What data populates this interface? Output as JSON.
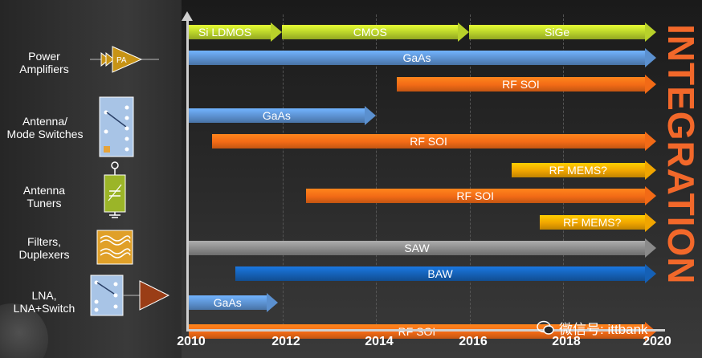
{
  "categories": [
    {
      "id": "pa",
      "label_lines": [
        "Power",
        "Amplifiers"
      ]
    },
    {
      "id": "switch",
      "label_lines": [
        "Antenna/",
        "Mode Switches"
      ]
    },
    {
      "id": "tuner",
      "label_lines": [
        "Antenna",
        "Tuners"
      ]
    },
    {
      "id": "filter",
      "label_lines": [
        "Filters,",
        "Duplexers"
      ]
    },
    {
      "id": "lna",
      "label_lines": [
        "LNA,",
        "LNA+Switch"
      ]
    }
  ],
  "pa_icon_text": "PA",
  "axis": {
    "ticks": [
      "2010",
      "2012",
      "2014",
      "2016",
      "2018",
      "2020"
    ]
  },
  "timeline": [
    {
      "name": "bar-si-ldmos",
      "label": "Si LDMOS",
      "start": 2010,
      "end": 2012,
      "row": 0,
      "color": "#b8d12a",
      "label_align": "left"
    },
    {
      "name": "bar-cmos",
      "label": "CMOS",
      "start": 2012,
      "end": 2016,
      "row": 0,
      "color": "#b8d12a",
      "label_align": "center"
    },
    {
      "name": "bar-sige",
      "label": "SiGe",
      "start": 2016,
      "end": 2020,
      "row": 0,
      "color": "#b8d12a",
      "label_align": "center"
    },
    {
      "name": "bar-pa-gaas",
      "label": "GaAs",
      "start": 2010,
      "end": 2020,
      "row": 1,
      "color": "#5b90cf",
      "label_align": "center"
    },
    {
      "name": "bar-pa-rfsoi",
      "label": "RF SOI",
      "start": 2014.45,
      "end": 2020,
      "row": 2,
      "color": "#f26a16",
      "label_align": "center"
    },
    {
      "name": "bar-switch-gaas",
      "label": "GaAs",
      "start": 2010,
      "end": 2014,
      "row": 3.2,
      "color": "#5b90cf",
      "label_align": "center"
    },
    {
      "name": "bar-switch-rfsoi",
      "label": "RF SOI",
      "start": 2010.5,
      "end": 2020,
      "row": 4.2,
      "color": "#f26a16",
      "label_align": "center"
    },
    {
      "name": "bar-switch-rfmems",
      "label": "RF MEMS?",
      "start": 2016.9,
      "end": 2020,
      "row": 5.3,
      "color": "#f0a500",
      "label_align": "center"
    },
    {
      "name": "bar-tuner-rfsoi",
      "label": "RF SOI",
      "start": 2012.5,
      "end": 2020,
      "row": 6.3,
      "color": "#f26a16",
      "label_align": "center"
    },
    {
      "name": "bar-tuner-rfmems",
      "label": "RF MEMS?",
      "start": 2017.5,
      "end": 2020,
      "row": 7.3,
      "color": "#f0a500",
      "label_align": "center"
    },
    {
      "name": "bar-filter-saw",
      "label": "SAW",
      "start": 2010,
      "end": 2020,
      "row": 8.3,
      "color": "#8a8a8a",
      "label_align": "center"
    },
    {
      "name": "bar-filter-baw",
      "label": "BAW",
      "start": 2011,
      "end": 2020,
      "row": 9.3,
      "color": "#1560b5",
      "label_align": "center"
    },
    {
      "name": "bar-lna-gaas",
      "label": "GaAs",
      "start": 2010,
      "end": 2011.9,
      "row": 10.4,
      "color": "#5b90cf",
      "label_align": "center"
    },
    {
      "name": "bar-lna-rfsoi",
      "label": "RF SOI",
      "start": 2010,
      "end": 2020,
      "row": 11.5,
      "color": "#f26a16",
      "label_align": "center"
    }
  ],
  "integration_label": "INTEGRATION",
  "watermark": {
    "text": "微信号: ittbank"
  }
}
